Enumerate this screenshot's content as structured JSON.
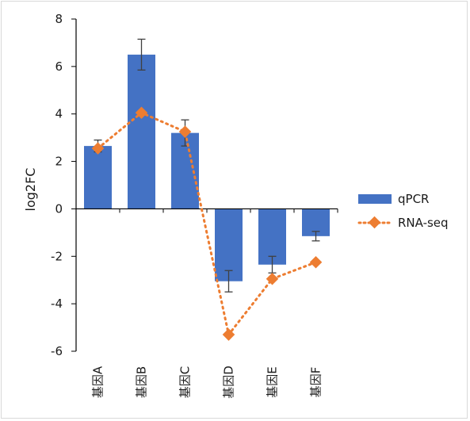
{
  "chart_data": {
    "type": "bar",
    "categories": [
      "基因A",
      "基因B",
      "基因C",
      "基因D",
      "基因E",
      "基因F"
    ],
    "series": [
      {
        "name": "qPCR",
        "kind": "bar",
        "values": [
          2.65,
          6.5,
          3.2,
          -3.05,
          -2.35,
          -1.15
        ],
        "errors": [
          0.25,
          0.65,
          0.55,
          0.45,
          0.35,
          0.2
        ],
        "color": "#4472c4"
      },
      {
        "name": "RNA-seq",
        "kind": "line",
        "line_style": "dotted",
        "marker": "diamond",
        "values": [
          2.55,
          4.05,
          3.25,
          -5.3,
          -2.95,
          -2.25
        ],
        "color": "#ed7d31"
      }
    ],
    "xlabel": "",
    "ylabel": "log2FC",
    "ylim": [
      -6,
      8
    ],
    "yticks": [
      -6,
      -4,
      -2,
      0,
      2,
      4,
      6,
      8
    ],
    "grid": false,
    "legend_position": "right"
  }
}
